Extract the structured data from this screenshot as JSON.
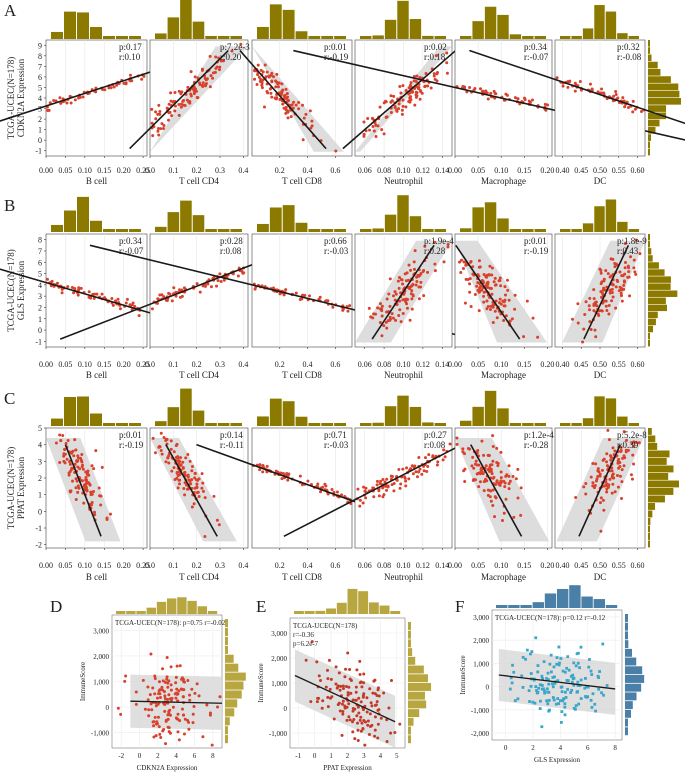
{
  "colors": {
    "olive": "#8c7a00",
    "olive_light": "#b8a640",
    "red": "#d8412c",
    "blue": "#4a7fa8",
    "cyan": "#3aa6c9",
    "band": "#d7d7d7",
    "line": "#1a1a1a",
    "dark_red": "#c23a28"
  },
  "chart_data": [
    {
      "panel": "A",
      "type": "scatter",
      "ylabel": "TCGA-UCEC(N=178) CDKN2A Expression",
      "ylim": [
        -1.5,
        9.5
      ],
      "yticks": [
        "-1",
        "0",
        "1",
        "2",
        "3",
        "4",
        "5",
        "6",
        "7",
        "8",
        "9"
      ],
      "cells": [
        {
          "xlabel": "B cell",
          "xlim": [
            0,
            0.26
          ],
          "xticks": [
            "0.00",
            "0.05",
            "0.10",
            "0.15",
            "0.20",
            "0.25"
          ],
          "p": "p:0.17",
          "r": "r:0.10",
          "slope": 12,
          "x0": 0.08,
          "y0": 4.2,
          "sx": 0.025
        },
        {
          "xlabel": "T cell CD4",
          "xlim": [
            0,
            0.42
          ],
          "xticks": [
            "0.0",
            "0.1",
            "0.2",
            "0.3",
            "0.4"
          ],
          "p": "p:7.2e-3",
          "r": "r:0.20",
          "slope": 22,
          "x0": 0.14,
          "y0": 4.2,
          "sx": 0.04
        },
        {
          "xlabel": "T cell CD8",
          "xlim": [
            0,
            0.72
          ],
          "xticks": [
            "0.2",
            "0.4",
            "0.6"
          ],
          "p": "p:0.01",
          "r": "r:-0.19",
          "slope": -15,
          "x0": 0.2,
          "y0": 4.2,
          "sx": 0.06
        },
        {
          "xlabel": "Neutrophil",
          "xlim": [
            0.05,
            0.15
          ],
          "xticks": [
            "0.06",
            "0.08",
            "0.10",
            "0.12",
            "0.14"
          ],
          "p": "p:0.02",
          "r": "r:0.18",
          "slope": 80,
          "x0": 0.1,
          "y0": 4.2,
          "sx": 0.012
        },
        {
          "xlabel": "Macrophage",
          "xlim": [
            0,
            0.21
          ],
          "xticks": [
            "0.00",
            "0.05",
            "0.10",
            "0.15",
            "0.20"
          ],
          "p": "p:0.34",
          "r": "r:-0.07",
          "slope": -10,
          "x0": 0.08,
          "y0": 4.2,
          "sx": 0.03
        },
        {
          "xlabel": "DC",
          "xlim": [
            0.38,
            0.62
          ],
          "xticks": [
            "0.40",
            "0.45",
            "0.50",
            "0.55",
            "0.60"
          ],
          "p": "p:0.32",
          "r": "r:-0.08",
          "slope": -12,
          "x0": 0.51,
          "y0": 4.2,
          "sx": 0.03
        }
      ]
    },
    {
      "panel": "B",
      "type": "scatter",
      "ylabel": "TCGA-UCEC(N=178) GLS Expression",
      "ylim": [
        -1.5,
        8.5
      ],
      "yticks": [
        "-1",
        "0",
        "1",
        "2",
        "3",
        "4",
        "5",
        "6",
        "7",
        "8"
      ],
      "cells": [
        {
          "xlabel": "B cell",
          "xlim": [
            0,
            0.26
          ],
          "xticks": [
            "0.00",
            "0.05",
            "0.10",
            "0.15",
            "0.20",
            "0.25"
          ],
          "p": "p:0.34",
          "r": "r:-0.07",
          "slope": -10,
          "x0": 0.08,
          "y0": 3.4,
          "sx": 0.025
        },
        {
          "xlabel": "T cell CD4",
          "xlim": [
            0,
            0.42
          ],
          "xticks": [
            "0.0",
            "0.1",
            "0.2",
            "0.3",
            "0.4"
          ],
          "p": "p:0.28",
          "r": "r:0.08",
          "slope": 8,
          "x0": 0.14,
          "y0": 3.4,
          "sx": 0.04
        },
        {
          "xlabel": "T cell CD8",
          "xlim": [
            0,
            0.72
          ],
          "xticks": [
            "0.2",
            "0.4",
            "0.6"
          ],
          "p": "p:0.66",
          "r": "r:-0.03",
          "slope": -3,
          "x0": 0.2,
          "y0": 3.4,
          "sx": 0.06
        },
        {
          "xlabel": "Neutrophil",
          "xlim": [
            0.05,
            0.15
          ],
          "xticks": [
            "0.06",
            "0.08",
            "0.10",
            "0.12",
            "0.14"
          ],
          "p": "p:1.9e-4",
          "r": "r:0.28",
          "slope": 130,
          "x0": 0.1,
          "y0": 3.4,
          "sx": 0.012
        },
        {
          "xlabel": "Macrophage",
          "xlim": [
            0,
            0.21
          ],
          "xticks": [
            "0.00",
            "0.05",
            "0.10",
            "0.15",
            "0.20"
          ],
          "p": "p:0.01",
          "r": "r:-0.19",
          "slope": -60,
          "x0": 0.07,
          "y0": 3.4,
          "sx": 0.03
        },
        {
          "xlabel": "DC",
          "xlim": [
            0.38,
            0.62
          ],
          "xticks": [
            "0.40",
            "0.45",
            "0.50",
            "0.55",
            "0.60"
          ],
          "p": "p:1.8e-9",
          "r": "r:0.43",
          "slope": 70,
          "x0": 0.52,
          "y0": 3.6,
          "sx": 0.03
        }
      ]
    },
    {
      "panel": "C",
      "type": "scatter",
      "ylabel": "TCGA-UCEC(N=178) PPAT Expression",
      "ylim": [
        -2.2,
        5
      ],
      "yticks": [
        "-2",
        "-1",
        "0",
        "1",
        "2",
        "3",
        "4",
        "5"
      ],
      "cells": [
        {
          "xlabel": "B cell",
          "xlim": [
            0,
            0.26
          ],
          "xticks": [
            "0.00",
            "0.05",
            "0.10",
            "0.15",
            "0.20",
            "0.25"
          ],
          "p": "p:0.01",
          "r": "r:-0.19",
          "slope": -60,
          "x0": 0.08,
          "y0": 2.2,
          "sx": 0.025
        },
        {
          "xlabel": "T cell CD4",
          "xlim": [
            0,
            0.42
          ],
          "xticks": [
            "0.0",
            "0.1",
            "0.2",
            "0.3",
            "0.4"
          ],
          "p": "p:0.14",
          "r": "r:-0.11",
          "slope": -25,
          "x0": 0.14,
          "y0": 2.2,
          "sx": 0.04
        },
        {
          "xlabel": "T cell CD8",
          "xlim": [
            0,
            0.72
          ],
          "xticks": [
            "0.2",
            "0.4",
            "0.6"
          ],
          "p": "p:0.71",
          "r": "r:-0.03",
          "slope": -3,
          "x0": 0.2,
          "y0": 2.2,
          "sx": 0.06
        },
        {
          "xlabel": "Neutrophil",
          "xlim": [
            0.05,
            0.15
          ],
          "xticks": [
            "0.06",
            "0.08",
            "0.10",
            "0.12",
            "0.14"
          ],
          "p": "p:0.27",
          "r": "r:0.08",
          "slope": 30,
          "x0": 0.1,
          "y0": 2.2,
          "sx": 0.012
        },
        {
          "xlabel": "Macrophage",
          "xlim": [
            0,
            0.21
          ],
          "xticks": [
            "0.00",
            "0.05",
            "0.10",
            "0.15",
            "0.20"
          ],
          "p": "p:1.2e-4",
          "r": "r:-0.28",
          "slope": -50,
          "x0": 0.07,
          "y0": 2.2,
          "sx": 0.03
        },
        {
          "xlabel": "DC",
          "xlim": [
            0.38,
            0.62
          ],
          "xticks": [
            "0.40",
            "0.45",
            "0.50",
            "0.55",
            "0.60"
          ],
          "p": "p:5.2e-8",
          "r": "r:0.39",
          "slope": 50,
          "x0": 0.52,
          "y0": 2.3,
          "sx": 0.03
        }
      ]
    },
    {
      "panel": "D",
      "type": "scatter",
      "title": "TCGA-UCEC(N=178): p=0.75 r=-0.02",
      "xlabel": "CDKN2A Expression",
      "ylabel": "ImmuneScore",
      "xlim": [
        -3,
        9
      ],
      "ylim": [
        -1600,
        3600
      ],
      "xticks": [
        "-2",
        "0",
        "2",
        "4",
        "6",
        "8"
      ],
      "yticks": [
        "-1,000",
        "0",
        "1,000",
        "2,000",
        "3,000"
      ],
      "line": [
        [
          -1,
          230
        ],
        [
          9,
          150
        ]
      ],
      "color_key": "red",
      "hist_key": "olive_light"
    },
    {
      "panel": "E",
      "type": "scatter",
      "title": "TCGA-UCEC(N=178)",
      "title2": "r=-0.36",
      "title3": "p=6.2e-7",
      "xlabel": "PPAT Expression",
      "ylabel": "ImmuneScore",
      "xlim": [
        -1.5,
        5.5
      ],
      "ylim": [
        -1600,
        3600
      ],
      "xticks": [
        "-1",
        "0",
        "1",
        "2",
        "3",
        "4",
        "5"
      ],
      "yticks": [
        "-1,000",
        "0",
        "1,000",
        "2,000",
        "3,000"
      ],
      "line": [
        [
          -1.2,
          1300
        ],
        [
          4.9,
          -550
        ]
      ],
      "color_key": "dark_red",
      "hist_key": "olive_light"
    },
    {
      "panel": "F",
      "type": "scatter",
      "title": "TCGA-UCEC(N=178): p=0.12 r=-0.12",
      "xlabel": "GLS Expression",
      "ylabel": "ImmuneScore",
      "xlim": [
        -1,
        8.5
      ],
      "ylim": [
        -2300,
        3300
      ],
      "xticks": [
        "0",
        "2",
        "4",
        "6",
        "8"
      ],
      "yticks": [
        "-2,000",
        "-1,000",
        "0",
        "1,000",
        "2,000",
        "3,000"
      ],
      "line": [
        [
          -0.5,
          500
        ],
        [
          8,
          -100
        ]
      ],
      "color_key": "cyan",
      "hist_key": "blue"
    }
  ]
}
